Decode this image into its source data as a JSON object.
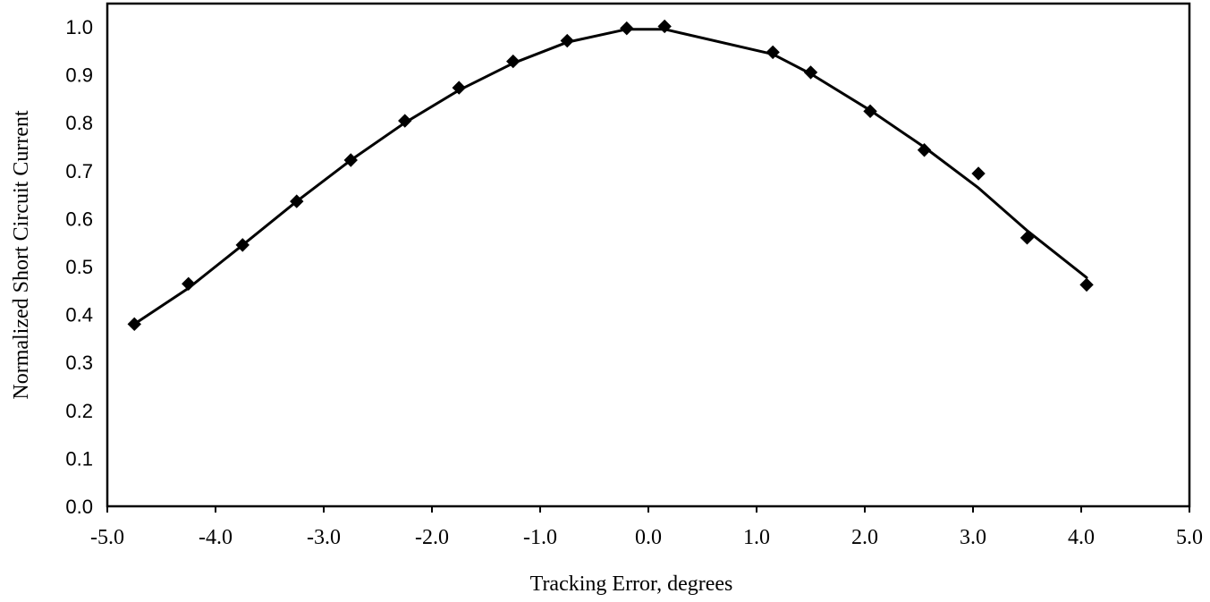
{
  "chart_data": {
    "type": "line",
    "title": "",
    "xlabel": "Tracking Error, degrees",
    "ylabel": "Normalized Short Circuit Current",
    "xlim": [
      -5.0,
      5.0
    ],
    "ylim": [
      0.0,
      1.0
    ],
    "x_ticks": [
      "-5.0",
      "-4.0",
      "-3.0",
      "-2.0",
      "-1.0",
      "0.0",
      "1.0",
      "2.0",
      "3.0",
      "4.0",
      "5.0"
    ],
    "y_ticks": [
      "0.0",
      "0.1",
      "0.2",
      "0.3",
      "0.4",
      "0.5",
      "0.6",
      "0.7",
      "0.8",
      "0.9",
      "1.0"
    ],
    "grid": false,
    "legend": "none",
    "series": [
      {
        "marker": "diamond",
        "color": "#000000",
        "points": [
          {
            "x": -4.75,
            "y": 0.38
          },
          {
            "x": -4.25,
            "y": 0.464
          },
          {
            "x": -3.75,
            "y": 0.545
          },
          {
            "x": -3.25,
            "y": 0.636
          },
          {
            "x": -2.75,
            "y": 0.722
          },
          {
            "x": -2.25,
            "y": 0.804
          },
          {
            "x": -1.75,
            "y": 0.873
          },
          {
            "x": -1.25,
            "y": 0.928
          },
          {
            "x": -0.75,
            "y": 0.971
          },
          {
            "x": -0.2,
            "y": 0.997
          },
          {
            "x": 0.15,
            "y": 1.001
          },
          {
            "x": 1.15,
            "y": 0.947
          },
          {
            "x": 1.5,
            "y": 0.905
          },
          {
            "x": 2.05,
            "y": 0.824
          },
          {
            "x": 2.55,
            "y": 0.743
          },
          {
            "x": 3.05,
            "y": 0.694
          },
          {
            "x": 3.5,
            "y": 0.56
          },
          {
            "x": 4.05,
            "y": 0.462
          }
        ],
        "fit": [
          {
            "x": -4.75,
            "y": 0.38
          },
          {
            "x": -4.25,
            "y": 0.455
          },
          {
            "x": -3.75,
            "y": 0.545
          },
          {
            "x": -3.25,
            "y": 0.636
          },
          {
            "x": -2.75,
            "y": 0.722
          },
          {
            "x": -2.25,
            "y": 0.8
          },
          {
            "x": -1.75,
            "y": 0.868
          },
          {
            "x": -1.25,
            "y": 0.924
          },
          {
            "x": -0.75,
            "y": 0.968
          },
          {
            "x": -0.2,
            "y": 0.995
          },
          {
            "x": 0.15,
            "y": 0.995
          },
          {
            "x": 1.15,
            "y": 0.943
          },
          {
            "x": 1.5,
            "y": 0.902
          },
          {
            "x": 2.05,
            "y": 0.826
          },
          {
            "x": 2.55,
            "y": 0.749
          },
          {
            "x": 3.05,
            "y": 0.664
          },
          {
            "x": 3.5,
            "y": 0.575
          },
          {
            "x": 4.05,
            "y": 0.477
          }
        ]
      }
    ]
  }
}
